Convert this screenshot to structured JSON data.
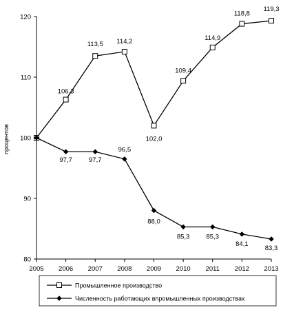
{
  "chart_data": {
    "type": "line",
    "x": [
      "2005",
      "2006",
      "2007",
      "2008",
      "2009",
      "2010",
      "2011",
      "2012",
      "2013"
    ],
    "ylabel": "процентов",
    "ylim": [
      80,
      120
    ],
    "yticks": [
      "80",
      "90",
      "100",
      "110",
      "120"
    ],
    "grid": false,
    "legend_position": "bottom",
    "series": [
      {
        "name": "Промышленное производство",
        "marker": "open-square",
        "values": [
          100,
          106.3,
          113.5,
          114.2,
          102.0,
          109.4,
          114.9,
          118.8,
          119.3
        ],
        "labels": [
          "",
          "106,3",
          "113,5",
          "114,2",
          "102,0",
          "109,4",
          "114,9",
          "118,8",
          "119,3"
        ]
      },
      {
        "name": "Численность работающих впромышленных производствах",
        "marker": "filled-diamond",
        "values": [
          100,
          97.7,
          97.7,
          96.5,
          88.0,
          85.3,
          85.3,
          84.1,
          83.3
        ],
        "labels": [
          "",
          "97,7",
          "97,7",
          "96,5",
          "88,0",
          "85,3",
          "85,3",
          "84,1",
          "83,3"
        ]
      }
    ]
  }
}
